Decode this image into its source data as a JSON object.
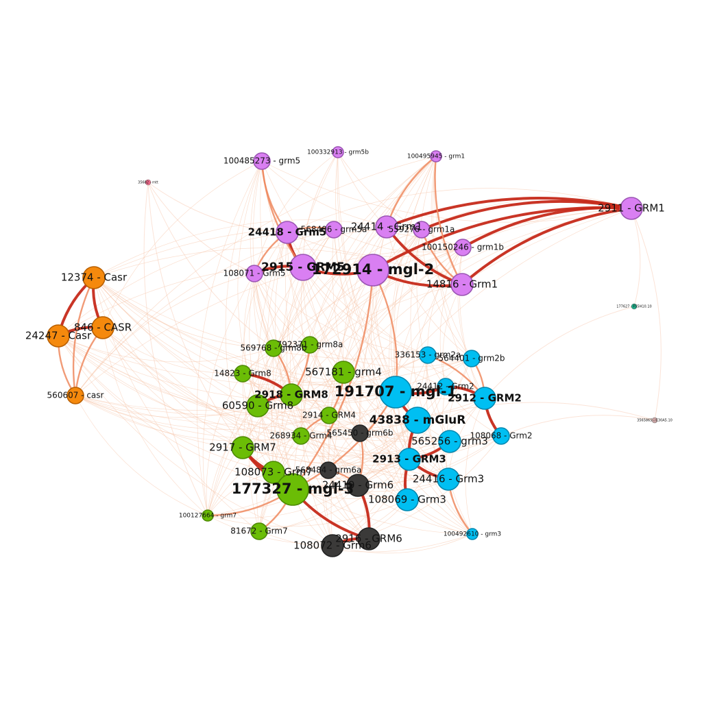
{
  "colors": {
    "purple": "#d97ff2",
    "purple_stroke": "#9a55b3",
    "green": "#6bbd06",
    "green_stroke": "#4d8a04",
    "blue": "#00bff2",
    "blue_stroke": "#0088b0",
    "dark": "#3b3a39",
    "dark_stroke": "#222222",
    "orange": "#f5890d",
    "orange_stroke": "#b85f00",
    "pink": "#f06a8a",
    "teal": "#1fae8a",
    "mauve": "#c9a3a3",
    "edge_light": "#f6c2a6",
    "edge_mid": "#ee8a5f",
    "edge_strong": "#c62a1a"
  },
  "nodes": [
    {
      "id": "100485273",
      "label": "100485273 - grm5",
      "group": "purple",
      "size": "sm"
    },
    {
      "id": "100332913",
      "label": "100332913 - grm5b",
      "group": "purple",
      "size": "xs"
    },
    {
      "id": "100495945",
      "label": "100495945 - grm1",
      "group": "purple",
      "size": "xs"
    },
    {
      "id": "2911",
      "label": "2911 - GRM1",
      "group": "purple",
      "size": "md"
    },
    {
      "id": "24418",
      "label": "24418 - Grm5",
      "group": "purple",
      "size": "md"
    },
    {
      "id": "568406",
      "label": "568406 - grm5a",
      "group": "purple",
      "size": "sm"
    },
    {
      "id": "24414",
      "label": "24414 - Grm1",
      "group": "purple",
      "size": "md"
    },
    {
      "id": "559276",
      "label": "559276 - grm1a",
      "group": "purple",
      "size": "sm"
    },
    {
      "id": "100150246",
      "label": "100150246 - grm1b",
      "group": "purple",
      "size": "sm"
    },
    {
      "id": "2915",
      "label": "2915 - GRM5",
      "group": "purple",
      "size": "lg"
    },
    {
      "id": "172914",
      "label": "172914 - mgl-2",
      "group": "purple",
      "size": "xl"
    },
    {
      "id": "108071",
      "label": "108071 - Grm5",
      "group": "purple",
      "size": "sm"
    },
    {
      "id": "14816",
      "label": "14816 - Grm1",
      "group": "purple",
      "size": "md"
    },
    {
      "id": "35682",
      "label": "35682 - mtt",
      "group": "pink",
      "size": "tiny"
    },
    {
      "id": "177627",
      "label": "177627 - F55H10.10",
      "group": "teal",
      "size": "tiny"
    },
    {
      "id": "3565865",
      "label": "3565865 - C30A5.10",
      "group": "mauve",
      "size": "tiny"
    },
    {
      "id": "12374",
      "label": "12374 - Casr",
      "group": "orange",
      "size": "md"
    },
    {
      "id": "846",
      "label": "846 - CASR",
      "group": "orange",
      "size": "md"
    },
    {
      "id": "24247",
      "label": "24247 - Casr",
      "group": "orange",
      "size": "md"
    },
    {
      "id": "560607",
      "label": "560607 - casr",
      "group": "orange",
      "size": "sm"
    },
    {
      "id": "792371",
      "label": "792371 - grm8a",
      "group": "green",
      "size": "sm"
    },
    {
      "id": "569768",
      "label": "569768 - grm8b",
      "group": "green",
      "size": "sm"
    },
    {
      "id": "14823",
      "label": "14823 - Grm8",
      "group": "green",
      "size": "sm"
    },
    {
      "id": "567181",
      "label": "567181 - grm4",
      "group": "green",
      "size": "md"
    },
    {
      "id": "2918",
      "label": "2918 - GRM8",
      "group": "green",
      "size": "md"
    },
    {
      "id": "60590",
      "label": "60590 - Grm8",
      "group": "green",
      "size": "md"
    },
    {
      "id": "2914",
      "label": "2914 - GRM4",
      "group": "green",
      "size": "sm"
    },
    {
      "id": "268934",
      "label": "268934 - Grm4",
      "group": "green",
      "size": "sm"
    },
    {
      "id": "2917",
      "label": "2917 - GRM7",
      "group": "green",
      "size": "md"
    },
    {
      "id": "108073",
      "label": "108073 - Grm7",
      "group": "green",
      "size": "md"
    },
    {
      "id": "177327",
      "label": "177327 - mgl-3",
      "group": "green",
      "size": "xl"
    },
    {
      "id": "100127664",
      "label": "100127664 - grm7",
      "group": "green",
      "size": "xs"
    },
    {
      "id": "81672",
      "label": "81672 - Grm7",
      "group": "green",
      "size": "sm"
    },
    {
      "id": "565450",
      "label": "565450 - grm6b",
      "group": "dark",
      "size": "sm"
    },
    {
      "id": "568484",
      "label": "568484 - grm6a",
      "group": "dark",
      "size": "sm"
    },
    {
      "id": "24419",
      "label": "24419 - Grm6",
      "group": "dark",
      "size": "md"
    },
    {
      "id": "2916",
      "label": "2916 - GRM6",
      "group": "dark",
      "size": "md"
    },
    {
      "id": "108072",
      "label": "108072 - Grm6",
      "group": "dark",
      "size": "md"
    },
    {
      "id": "336153",
      "label": "336153 - grm2a",
      "group": "blue",
      "size": "sm"
    },
    {
      "id": "564401",
      "label": "564401 - grm2b",
      "group": "blue",
      "size": "sm"
    },
    {
      "id": "191707",
      "label": "191707 - mgl-1",
      "group": "blue",
      "size": "xl"
    },
    {
      "id": "24412",
      "label": "24412 - Grm2",
      "group": "blue",
      "size": "sm"
    },
    {
      "id": "2912",
      "label": "2912 - GRM2",
      "group": "blue",
      "size": "md"
    },
    {
      "id": "43838",
      "label": "43838 - mGluR",
      "group": "blue",
      "size": "lg"
    },
    {
      "id": "108068",
      "label": "108068 - Grm2",
      "group": "blue",
      "size": "sm"
    },
    {
      "id": "565256",
      "label": "565256 - grm3",
      "group": "blue",
      "size": "md"
    },
    {
      "id": "2913",
      "label": "2913 - GRM3",
      "group": "blue",
      "size": "md"
    },
    {
      "id": "24416",
      "label": "24416 - Grm3",
      "group": "blue",
      "size": "md"
    },
    {
      "id": "108069",
      "label": "108069 - Grm3",
      "group": "blue",
      "size": "md"
    },
    {
      "id": "100492610",
      "label": "100492610 - grm3",
      "group": "blue",
      "size": "xs"
    }
  ],
  "edges": [
    {
      "source": "12374",
      "target": "24247",
      "strength": "strong"
    },
    {
      "source": "12374",
      "target": "846",
      "strength": "strong"
    },
    {
      "source": "846",
      "target": "24247",
      "strength": "strong"
    },
    {
      "source": "12374",
      "target": "560607",
      "strength": "mid"
    },
    {
      "source": "846",
      "target": "560607",
      "strength": "mid"
    },
    {
      "source": "24247",
      "target": "560607",
      "strength": "mid"
    },
    {
      "source": "2911",
      "target": "14816",
      "strength": "strong"
    },
    {
      "source": "2911",
      "target": "24414",
      "strength": "strong"
    },
    {
      "source": "2911",
      "target": "100150246",
      "strength": "strong"
    },
    {
      "source": "2911",
      "target": "559276",
      "strength": "strong"
    },
    {
      "source": "2911",
      "target": "172914",
      "strength": "strong"
    },
    {
      "source": "24414",
      "target": "14816",
      "strength": "strong"
    },
    {
      "source": "24418",
      "target": "2915",
      "strength": "strong"
    },
    {
      "source": "24418",
      "target": "108071",
      "strength": "mid"
    },
    {
      "source": "2915",
      "target": "108071",
      "strength": "strong"
    },
    {
      "source": "2915",
      "target": "172914",
      "strength": "strong"
    },
    {
      "source": "172914",
      "target": "14816",
      "strength": "strong"
    },
    {
      "source": "568406",
      "target": "24418",
      "strength": "mid"
    },
    {
      "source": "100485273",
      "target": "24418",
      "strength": "mid"
    },
    {
      "source": "100485273",
      "target": "2915",
      "strength": "mid"
    },
    {
      "source": "100332913",
      "target": "2915",
      "strength": "light"
    },
    {
      "source": "100495945",
      "target": "24414",
      "strength": "mid"
    },
    {
      "source": "100495945",
      "target": "14816",
      "strength": "mid"
    },
    {
      "source": "559276",
      "target": "14816",
      "strength": "mid"
    },
    {
      "source": "2918",
      "target": "14823",
      "strength": "strong"
    },
    {
      "source": "2918",
      "target": "60590",
      "strength": "strong"
    },
    {
      "source": "2918",
      "target": "569768",
      "strength": "mid"
    },
    {
      "source": "2918",
      "target": "792371",
      "strength": "mid"
    },
    {
      "source": "2917",
      "target": "108073",
      "strength": "strong"
    },
    {
      "source": "2917",
      "target": "177327",
      "strength": "strong"
    },
    {
      "source": "108073",
      "target": "177327",
      "strength": "strong"
    },
    {
      "source": "100127664",
      "target": "177327",
      "strength": "mid"
    },
    {
      "source": "81672",
      "target": "177327",
      "strength": "mid"
    },
    {
      "source": "2914",
      "target": "567181",
      "strength": "mid"
    },
    {
      "source": "2914",
      "target": "268934",
      "strength": "mid"
    },
    {
      "source": "2916",
      "target": "108072",
      "strength": "strong"
    },
    {
      "source": "2916",
      "target": "24419",
      "strength": "strong"
    },
    {
      "source": "24419",
      "target": "568484",
      "strength": "mid"
    },
    {
      "source": "24419",
      "target": "565450",
      "strength": "mid"
    },
    {
      "source": "177327",
      "target": "2916",
      "strength": "strong"
    },
    {
      "source": "191707",
      "target": "43838",
      "strength": "strong"
    },
    {
      "source": "191707",
      "target": "24412",
      "strength": "strong"
    },
    {
      "source": "2912",
      "target": "24412",
      "strength": "strong"
    },
    {
      "source": "2912",
      "target": "108068",
      "strength": "strong"
    },
    {
      "source": "2912",
      "target": "564401",
      "strength": "mid"
    },
    {
      "source": "2912",
      "target": "336153",
      "strength": "mid"
    },
    {
      "source": "2913",
      "target": "24416",
      "strength": "strong"
    },
    {
      "source": "2913",
      "target": "108069",
      "strength": "strong"
    },
    {
      "source": "2913",
      "target": "565256",
      "strength": "strong"
    },
    {
      "source": "24416",
      "target": "100492610",
      "strength": "mid"
    },
    {
      "source": "43838",
      "target": "2913",
      "strength": "strong"
    },
    {
      "source": "191707",
      "target": "172914",
      "strength": "mid"
    },
    {
      "source": "177327",
      "target": "172914",
      "strength": "mid"
    },
    {
      "source": "177327",
      "target": "191707",
      "strength": "mid"
    },
    {
      "source": "35682",
      "target": "24418",
      "strength": "light"
    },
    {
      "source": "35682",
      "target": "108071",
      "strength": "light"
    },
    {
      "source": "35682",
      "target": "2917",
      "strength": "light"
    },
    {
      "source": "35682",
      "target": "100127664",
      "strength": "light"
    },
    {
      "source": "35682",
      "target": "569768",
      "strength": "light"
    },
    {
      "source": "177627",
      "target": "2911",
      "strength": "light"
    },
    {
      "source": "177627",
      "target": "2912",
      "strength": "light"
    },
    {
      "source": "3565865",
      "target": "2911",
      "strength": "light"
    },
    {
      "source": "3565865",
      "target": "108068",
      "strength": "light"
    },
    {
      "source": "3565865",
      "target": "43838",
      "strength": "light"
    }
  ]
}
